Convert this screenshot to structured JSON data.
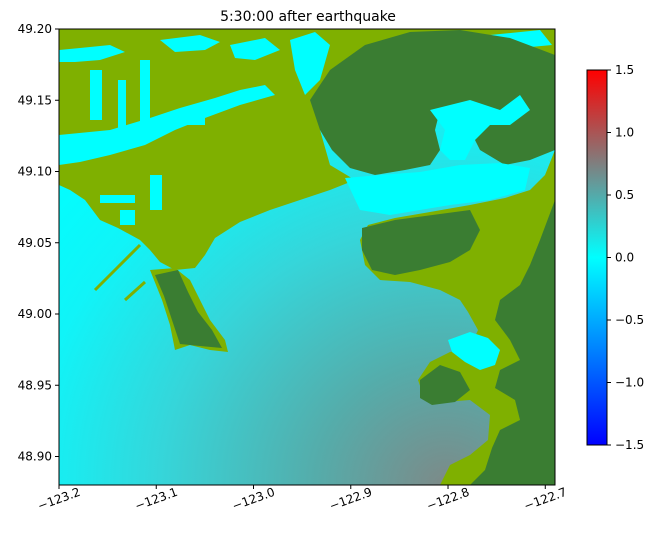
{
  "figure": {
    "title": "5:30:00 after earthquake"
  },
  "map": {
    "x_ticks": [
      "−123.2",
      "−123.1",
      "−123.0",
      "−122.9",
      "−122.8",
      "−122.7"
    ],
    "y_ticks": [
      "49.20",
      "49.15",
      "49.10",
      "49.05",
      "49.00",
      "48.95",
      "48.90"
    ],
    "x_range": [
      -123.2,
      -122.69
    ],
    "y_range": [
      48.88,
      49.2
    ],
    "land_colors": {
      "lowland": "#7fb000",
      "highland": "#3a7d32"
    }
  },
  "colorbar": {
    "ticks": [
      "1.5",
      "1.0",
      "0.5",
      "0.0",
      "−0.5",
      "−1.0",
      "−1.5"
    ],
    "range": [
      -1.5,
      1.5
    ],
    "colors": {
      "min": "#0000ff",
      "mid_low": "#00a0ff",
      "zero": "#00ffff",
      "mid_high": "#7f7f7f",
      "max": "#ff0000"
    }
  }
}
